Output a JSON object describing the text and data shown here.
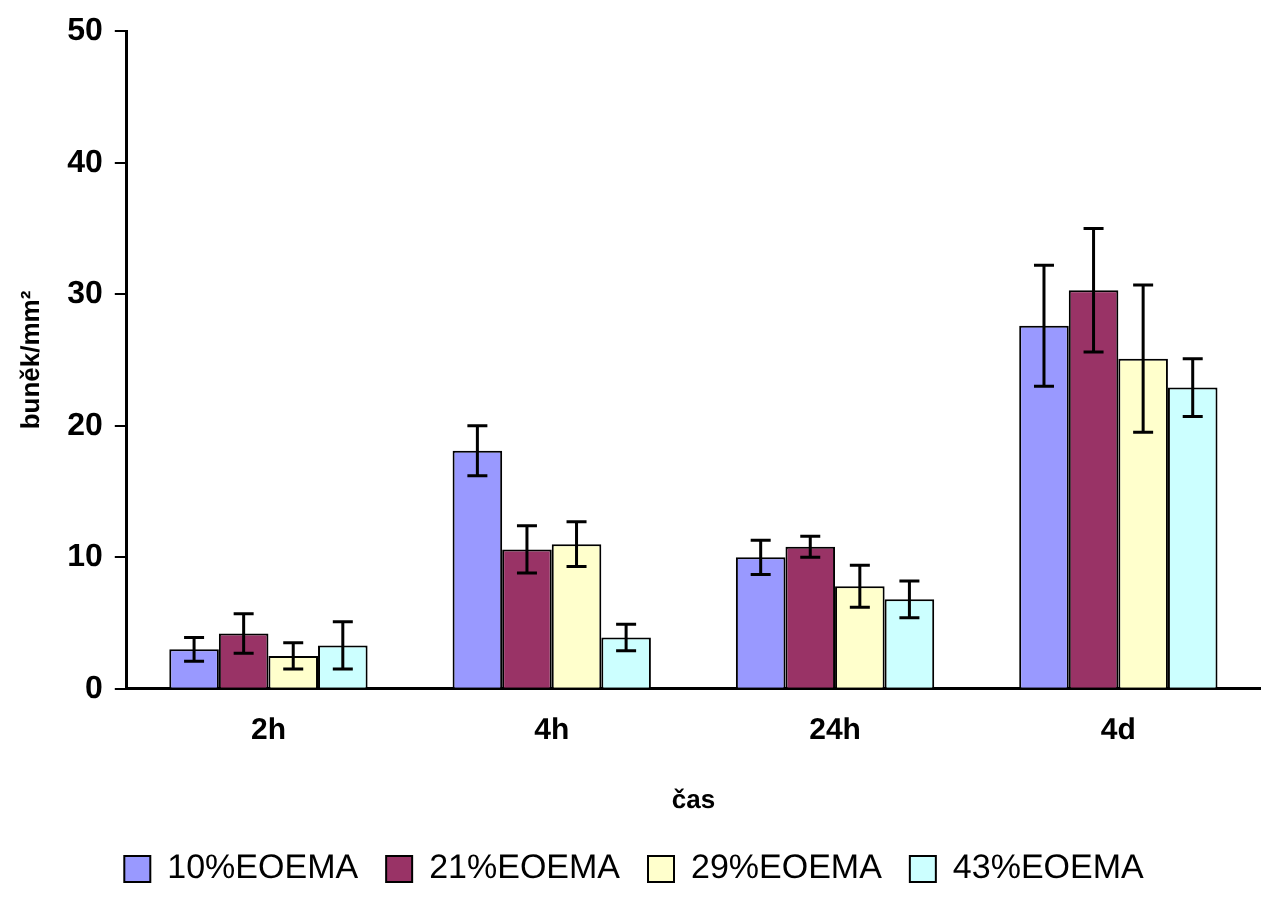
{
  "chart_data": {
    "type": "bar",
    "xlabel": "čas",
    "ylabel": "buněk/mm²",
    "categories": [
      "2h",
      "4h",
      "24h",
      "4d"
    ],
    "series": [
      {
        "name": "10%EOEMA",
        "color": "#9999ff",
        "values": [
          3.0,
          18.1,
          10.0,
          27.6
        ],
        "errors": [
          0.9,
          1.9,
          1.3,
          4.6
        ]
      },
      {
        "name": "21%EOEMA",
        "color": "#993366",
        "values": [
          4.2,
          10.6,
          10.8,
          30.3
        ],
        "errors": [
          1.5,
          1.8,
          0.8,
          4.7
        ]
      },
      {
        "name": "29%EOEMA",
        "color": "#ffffcc",
        "values": [
          2.5,
          11.0,
          7.8,
          25.1
        ],
        "errors": [
          1.0,
          1.7,
          1.6,
          5.6
        ]
      },
      {
        "name": "43%EOEMA",
        "color": "#ccffff",
        "values": [
          3.3,
          3.9,
          6.8,
          22.9
        ],
        "errors": [
          1.8,
          1.0,
          1.4,
          2.2
        ]
      }
    ],
    "ylim": [
      0,
      50
    ],
    "yticks": [
      0,
      10,
      20,
      30,
      40,
      50
    ],
    "grid": false,
    "legend": "bottom"
  }
}
